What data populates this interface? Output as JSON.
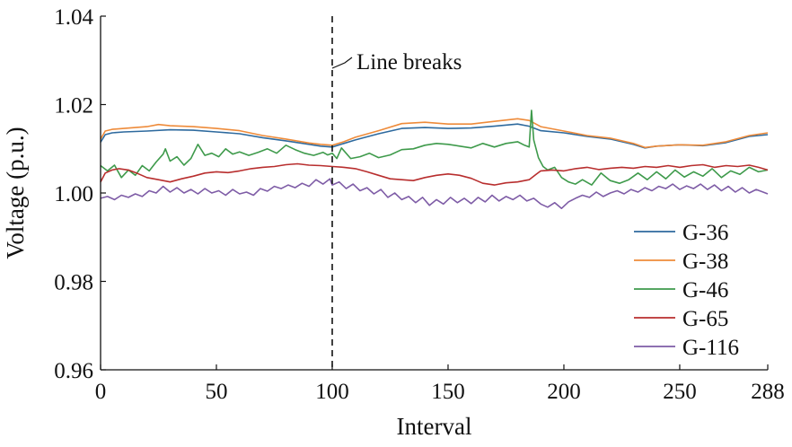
{
  "chart_data": {
    "type": "line",
    "xlabel": "Interval",
    "ylabel": "Voltage (p.u.)",
    "xlim": [
      0,
      288
    ],
    "ylim": [
      0.96,
      1.04
    ],
    "xticks": [
      0,
      50,
      100,
      150,
      200,
      250,
      288
    ],
    "xtick_labels": [
      "0",
      "50",
      "100",
      "150",
      "200",
      "250",
      "288"
    ],
    "yticks": [
      0.96,
      0.98,
      1.0,
      1.02,
      1.04
    ],
    "ytick_labels": [
      "0.96",
      "0.98",
      "1.00",
      "1.02",
      "1.04"
    ],
    "grid": false,
    "legend_position": "lower-right",
    "annotation": {
      "text": "Line breaks",
      "x": 100
    },
    "series": [
      {
        "name": "G-36",
        "color": "#2E6A9E",
        "x": [
          0,
          2,
          5,
          10,
          20,
          30,
          40,
          50,
          60,
          70,
          80,
          90,
          95,
          100,
          105,
          110,
          120,
          130,
          140,
          150,
          160,
          170,
          180,
          185,
          190,
          200,
          210,
          220,
          230,
          235,
          240,
          250,
          260,
          270,
          280,
          288
        ],
        "y": [
          1.0115,
          1.0132,
          1.0136,
          1.0138,
          1.014,
          1.0143,
          1.0142,
          1.0138,
          1.0134,
          1.0125,
          1.0118,
          1.011,
          1.0106,
          1.0104,
          1.0112,
          1.012,
          1.0134,
          1.0146,
          1.0148,
          1.0146,
          1.0147,
          1.0151,
          1.0156,
          1.0151,
          1.0141,
          1.0136,
          1.0128,
          1.0122,
          1.011,
          1.0102,
          1.0106,
          1.0109,
          1.0107,
          1.0114,
          1.0128,
          1.0132
        ]
      },
      {
        "name": "G-38",
        "color": "#EE8B3A",
        "x": [
          0,
          2,
          5,
          10,
          20,
          25,
          30,
          40,
          50,
          60,
          70,
          80,
          90,
          95,
          100,
          105,
          110,
          120,
          130,
          140,
          150,
          160,
          170,
          180,
          185,
          190,
          200,
          210,
          220,
          230,
          235,
          240,
          250,
          260,
          270,
          280,
          288
        ],
        "y": [
          1.0122,
          1.014,
          1.0144,
          1.0146,
          1.015,
          1.0155,
          1.0152,
          1.015,
          1.0146,
          1.0141,
          1.013,
          1.0122,
          1.0113,
          1.011,
          1.0108,
          1.0116,
          1.0126,
          1.0141,
          1.0157,
          1.016,
          1.0156,
          1.0156,
          1.0162,
          1.0168,
          1.0164,
          1.015,
          1.014,
          1.013,
          1.0124,
          1.0112,
          1.0103,
          1.0106,
          1.0109,
          1.0108,
          1.0116,
          1.013,
          1.0136
        ]
      },
      {
        "name": "G-46",
        "color": "#3E9A4B",
        "x": [
          0,
          3,
          6,
          9,
          12,
          15,
          18,
          21,
          24,
          27,
          28,
          30,
          33,
          36,
          39,
          42,
          45,
          48,
          51,
          54,
          57,
          60,
          64,
          68,
          72,
          76,
          80,
          84,
          88,
          92,
          96,
          98,
          100,
          102,
          104,
          108,
          112,
          116,
          120,
          125,
          130,
          135,
          140,
          145,
          150,
          155,
          160,
          165,
          170,
          175,
          180,
          183,
          185,
          186,
          187,
          189,
          191,
          193,
          196,
          199,
          202,
          205,
          208,
          212,
          216,
          220,
          224,
          228,
          232,
          236,
          240,
          244,
          248,
          252,
          256,
          260,
          264,
          268,
          272,
          276,
          280,
          284,
          288
        ],
        "y": [
          1.0062,
          1.005,
          1.0063,
          1.0035,
          1.0052,
          1.004,
          1.0062,
          1.005,
          1.007,
          1.0088,
          1.01,
          1.0072,
          1.0082,
          1.0063,
          1.0078,
          1.011,
          1.0085,
          1.009,
          1.0082,
          1.01,
          1.0088,
          1.0093,
          1.0085,
          1.0092,
          1.01,
          1.009,
          1.0108,
          1.0098,
          1.009,
          1.0085,
          1.0092,
          1.0086,
          1.009,
          1.0078,
          1.0102,
          1.0078,
          1.0082,
          1.009,
          1.008,
          1.0086,
          1.0098,
          1.01,
          1.0108,
          1.0112,
          1.011,
          1.0106,
          1.0102,
          1.0112,
          1.0104,
          1.0112,
          1.0116,
          1.0108,
          1.0104,
          1.0187,
          1.012,
          1.008,
          1.006,
          1.0052,
          1.0058,
          1.0035,
          1.0025,
          1.002,
          1.003,
          1.0018,
          1.0045,
          1.0028,
          1.0022,
          1.003,
          1.0045,
          1.003,
          1.0048,
          1.0032,
          1.0052,
          1.0036,
          1.0048,
          1.0038,
          1.0055,
          1.0035,
          1.005,
          1.0042,
          1.0058,
          1.0048,
          1.0052
        ]
      },
      {
        "name": "G-65",
        "color": "#B82E2E",
        "x": [
          0,
          2,
          5,
          8,
          12,
          16,
          20,
          25,
          30,
          35,
          40,
          45,
          50,
          55,
          60,
          65,
          70,
          75,
          80,
          85,
          90,
          95,
          100,
          105,
          110,
          115,
          120,
          125,
          130,
          135,
          140,
          145,
          150,
          155,
          160,
          165,
          170,
          175,
          180,
          185,
          188,
          190,
          195,
          200,
          205,
          210,
          215,
          220,
          225,
          230,
          235,
          240,
          245,
          250,
          255,
          260,
          265,
          270,
          275,
          280,
          284,
          288
        ],
        "y": [
          1.0025,
          1.0045,
          1.0052,
          1.0055,
          1.0052,
          1.0044,
          1.0035,
          1.003,
          1.0025,
          1.0032,
          1.0038,
          1.0045,
          1.0048,
          1.0046,
          1.005,
          1.0055,
          1.0058,
          1.006,
          1.0064,
          1.0066,
          1.0063,
          1.0062,
          1.006,
          1.0058,
          1.0055,
          1.0048,
          1.004,
          1.0032,
          1.003,
          1.0028,
          1.0035,
          1.004,
          1.0043,
          1.004,
          1.0033,
          1.0022,
          1.0018,
          1.0023,
          1.0025,
          1.003,
          1.0042,
          1.005,
          1.0052,
          1.005,
          1.0055,
          1.0058,
          1.0053,
          1.0056,
          1.0058,
          1.0056,
          1.006,
          1.0058,
          1.0062,
          1.0058,
          1.0062,
          1.0064,
          1.0058,
          1.0062,
          1.006,
          1.0063,
          1.0058,
          1.0052
        ]
      },
      {
        "name": "G-116",
        "color": "#7E5CA6",
        "x": [
          0,
          3,
          6,
          9,
          12,
          15,
          18,
          21,
          24,
          27,
          30,
          33,
          36,
          39,
          42,
          45,
          48,
          51,
          54,
          57,
          60,
          63,
          66,
          69,
          72,
          75,
          78,
          81,
          84,
          87,
          90,
          93,
          96,
          99,
          100,
          103,
          106,
          109,
          112,
          115,
          118,
          121,
          124,
          127,
          130,
          133,
          136,
          139,
          142,
          145,
          148,
          151,
          154,
          157,
          160,
          163,
          166,
          169,
          172,
          175,
          178,
          181,
          184,
          187,
          190,
          193,
          196,
          199,
          202,
          205,
          208,
          211,
          214,
          217,
          220,
          223,
          226,
          229,
          232,
          235,
          238,
          241,
          244,
          247,
          250,
          253,
          256,
          259,
          262,
          265,
          268,
          271,
          274,
          277,
          280,
          283,
          286,
          288
        ],
        "y": [
          0.9988,
          0.9992,
          0.9985,
          0.9995,
          0.999,
          0.9998,
          0.9992,
          1.0005,
          1.0,
          1.0015,
          1.0002,
          1.0012,
          1.0,
          1.0008,
          0.9998,
          1.001,
          1.0,
          1.0005,
          0.9995,
          1.0008,
          0.9998,
          1.0002,
          0.9995,
          1.001,
          1.0004,
          1.0015,
          1.001,
          1.0018,
          1.0012,
          1.0022,
          1.0015,
          1.003,
          1.002,
          1.0032,
          1.0018,
          1.0025,
          1.001,
          1.002,
          1.0005,
          1.0012,
          0.9998,
          1.0008,
          0.999,
          1.0,
          0.9985,
          0.9992,
          0.9978,
          0.999,
          0.9972,
          0.9985,
          0.9975,
          0.999,
          0.9978,
          0.9988,
          0.9976,
          0.999,
          0.998,
          0.9995,
          0.9982,
          0.9992,
          0.9985,
          0.9995,
          0.9982,
          0.9988,
          0.9975,
          0.9968,
          0.9978,
          0.9965,
          0.998,
          0.9988,
          0.9995,
          0.999,
          1.0002,
          0.9992,
          1.0,
          1.0005,
          0.9998,
          1.0008,
          1.0002,
          1.0012,
          1.0005,
          1.0015,
          1.001,
          1.002,
          1.0008,
          1.0016,
          1.001,
          1.002,
          1.0008,
          1.0018,
          1.0005,
          1.0015,
          1.0002,
          1.0012,
          1.0,
          1.0008,
          1.0002,
          0.9998
        ]
      }
    ]
  }
}
